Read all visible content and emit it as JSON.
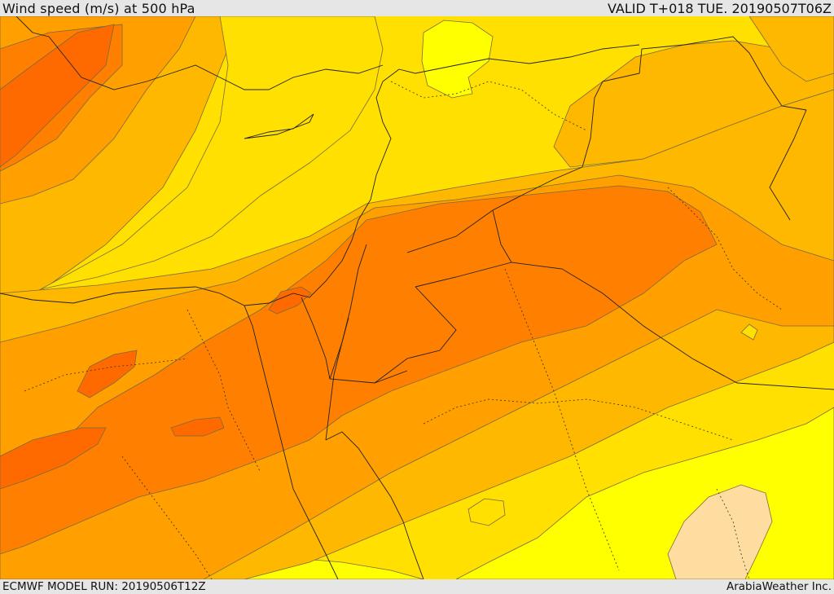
{
  "header": {
    "title": "Wind speed (m/s) at 500 hPa",
    "valid": "VALID T+018 TUE. 20190507T06Z"
  },
  "footer": {
    "model_run": "ECMWF MODEL RUN: 20190506T12Z",
    "credit": "ArabiaWeather Inc."
  },
  "palette": {
    "very_low": "#ffff00",
    "low": "#ffe000",
    "mid": "#ffb800",
    "mid_high": "#ff9f00",
    "high": "#ff7f00",
    "very_high": "#ff6a00",
    "pale": "#ffdda0"
  }
}
